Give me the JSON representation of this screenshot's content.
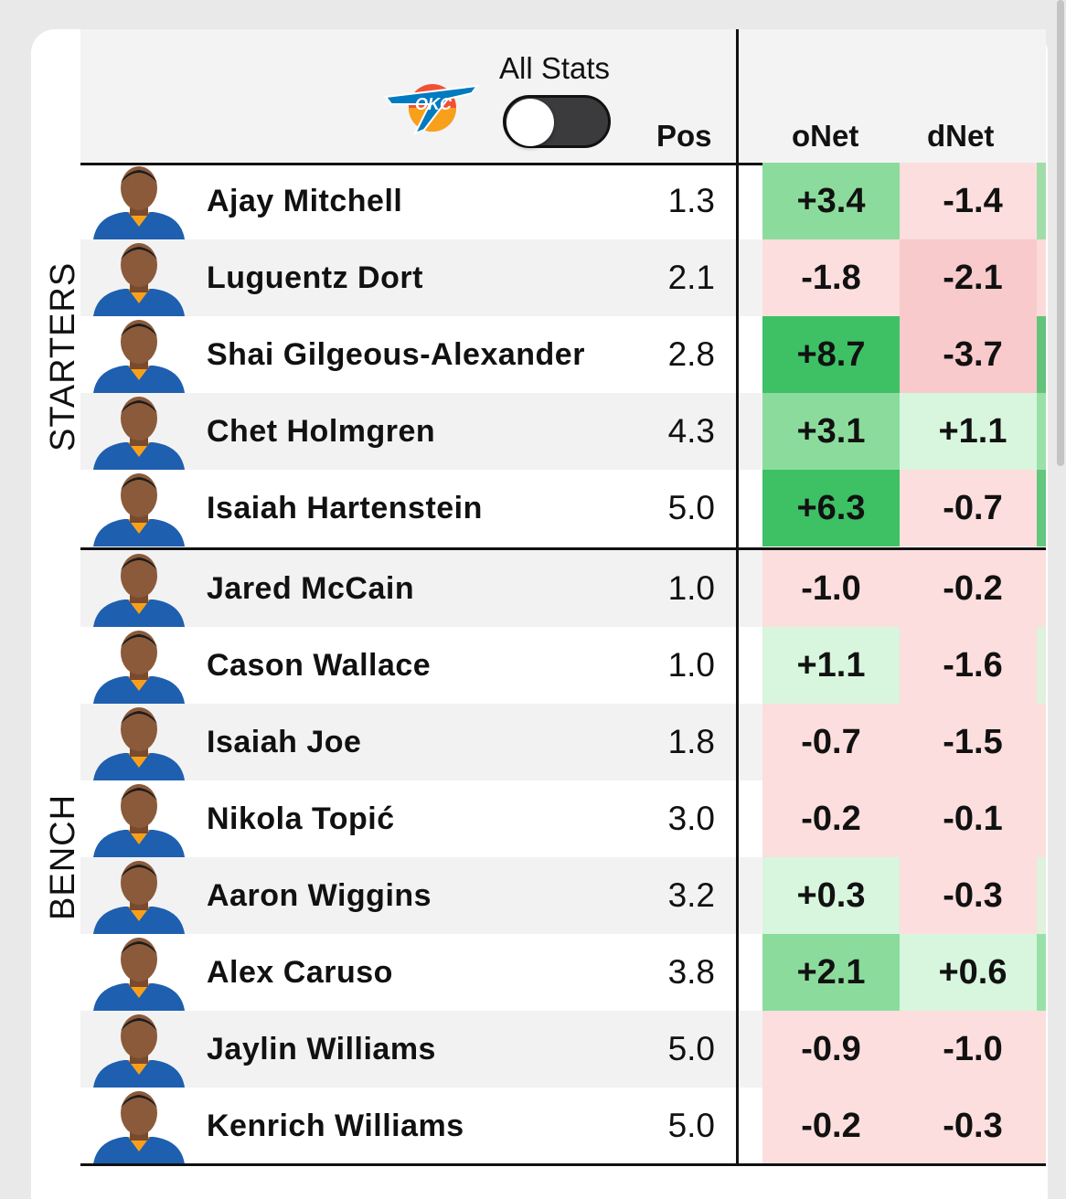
{
  "header": {
    "toggle_label": "All Stats",
    "columns": {
      "pos": "Pos",
      "onet": "oNet",
      "dnet": "dNet"
    },
    "team_logo": "okc-thunder-logo-icon"
  },
  "groups": {
    "starters_label": "STARTERS",
    "bench_label": "BENCH"
  },
  "colors": {
    "green_strong": "#3ec065",
    "green_mid": "#8bdc9c",
    "green_light": "#d7f6dd",
    "red_light": "#fbdedd",
    "red_mid": "#f9cacb"
  },
  "players": [
    {
      "name": "Ajay Mitchell",
      "pos": "1.3",
      "onet": "+3.4",
      "dnet": "-1.4",
      "group": "starters"
    },
    {
      "name": "Luguentz Dort",
      "pos": "2.1",
      "onet": "-1.8",
      "dnet": "-2.1",
      "group": "starters"
    },
    {
      "name": "Shai Gilgeous-Alexander",
      "pos": "2.8",
      "onet": "+8.7",
      "dnet": "-3.7",
      "group": "starters"
    },
    {
      "name": "Chet Holmgren",
      "pos": "4.3",
      "onet": "+3.1",
      "dnet": "+1.1",
      "group": "starters"
    },
    {
      "name": "Isaiah Hartenstein",
      "pos": "5.0",
      "onet": "+6.3",
      "dnet": "-0.7",
      "group": "starters"
    },
    {
      "name": "Jared McCain",
      "pos": "1.0",
      "onet": "-1.0",
      "dnet": "-0.2",
      "group": "bench"
    },
    {
      "name": "Cason Wallace",
      "pos": "1.0",
      "onet": "+1.1",
      "dnet": "-1.6",
      "group": "bench"
    },
    {
      "name": "Isaiah Joe",
      "pos": "1.8",
      "onet": "-0.7",
      "dnet": "-1.5",
      "group": "bench"
    },
    {
      "name": "Nikola Topić",
      "pos": "3.0",
      "onet": "-0.2",
      "dnet": "-0.1",
      "group": "bench"
    },
    {
      "name": "Aaron Wiggins",
      "pos": "3.2",
      "onet": "+0.3",
      "dnet": "-0.3",
      "group": "bench"
    },
    {
      "name": "Alex Caruso",
      "pos": "3.8",
      "onet": "+2.1",
      "dnet": "+0.6",
      "group": "bench"
    },
    {
      "name": "Jaylin Williams",
      "pos": "5.0",
      "onet": "-0.9",
      "dnet": "-1.0",
      "group": "bench"
    },
    {
      "name": "Kenrich Williams",
      "pos": "5.0",
      "onet": "-0.2",
      "dnet": "-0.3",
      "group": "bench"
    }
  ]
}
